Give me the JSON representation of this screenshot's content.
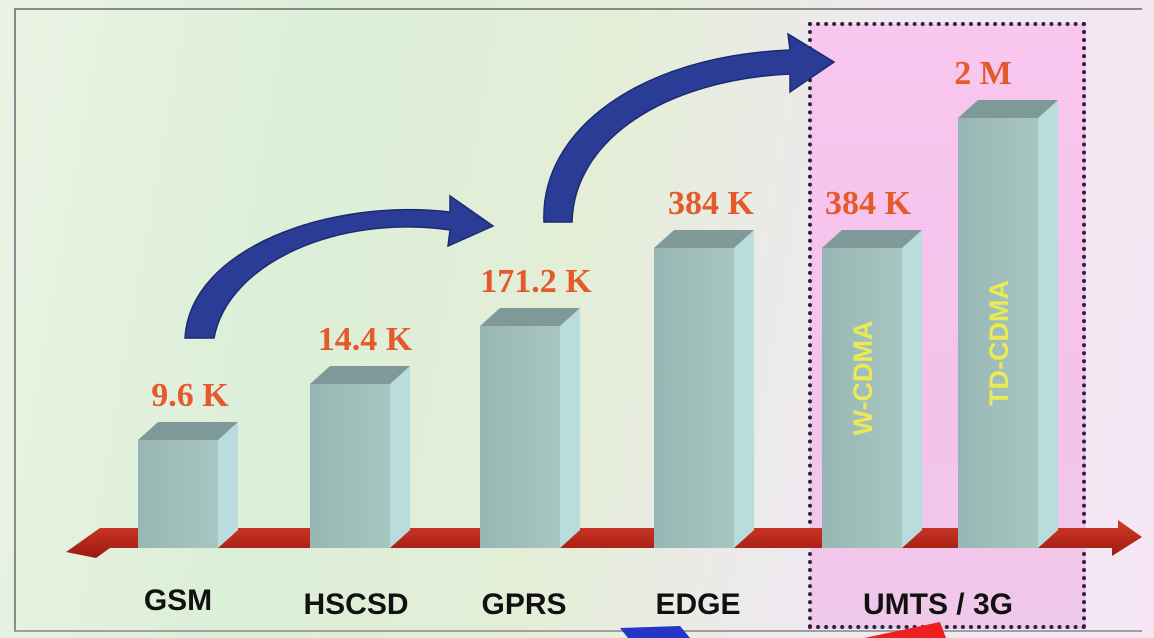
{
  "chart_data": {
    "type": "bar",
    "categories": [
      "GSM",
      "HSCSD",
      "GPRS",
      "EDGE",
      "UMTS / 3G"
    ],
    "bars": [
      {
        "category": "GSM",
        "value_kbps": 9.6,
        "label": "9.6 K"
      },
      {
        "category": "HSCSD",
        "value_kbps": 14.4,
        "label": "14.4 K"
      },
      {
        "category": "GPRS",
        "value_kbps": 171.2,
        "label": "171.2 K"
      },
      {
        "category": "EDGE",
        "value_kbps": 384,
        "label": "384 K"
      },
      {
        "category": "UMTS / 3G",
        "value_kbps": 384,
        "label": "384 K",
        "inner_label": "W-CDMA"
      },
      {
        "category": "UMTS / 3G",
        "value_kbps": 2000,
        "label": "2 M",
        "inner_label": "TD-CDMA"
      }
    ],
    "scale": "stepwise (not proportional)",
    "colors": {
      "bar_front": "#9fbdb9",
      "bar_side": "#b9dcdc",
      "bar_top": "#7e9997",
      "value_label": "#e55a2b",
      "inner_label": "#e9ea55",
      "axis_bar": "#b91f13",
      "arrow": "#2b3c96",
      "highlight": "#f6c4ec"
    }
  }
}
